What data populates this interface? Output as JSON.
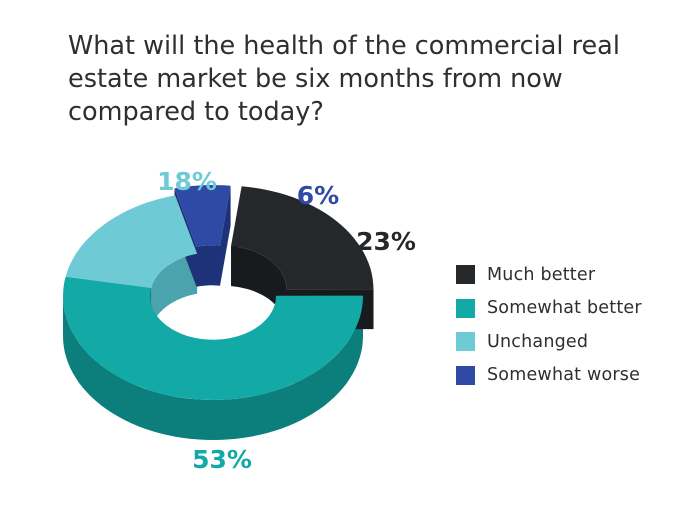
{
  "title": "What will the health of the commercial real estate market be six months from now compared to today?",
  "chart_data": {
    "type": "pie",
    "style": "3d-donut",
    "categories": [
      "Much better",
      "Somewhat better",
      "Unchanged",
      "Somewhat worse"
    ],
    "values": [
      23,
      53,
      18,
      6
    ],
    "value_labels": [
      "23%",
      "53%",
      "18%",
      "6%"
    ],
    "unit": "%",
    "colors": [
      "#24282b",
      "#13a9a6",
      "#6ecbd6",
      "#2f4aa5"
    ],
    "side_colors": [
      "#181b1e",
      "#0c7f7c",
      "#4ba3ad",
      "#1e3279"
    ],
    "legend_position": "right"
  }
}
